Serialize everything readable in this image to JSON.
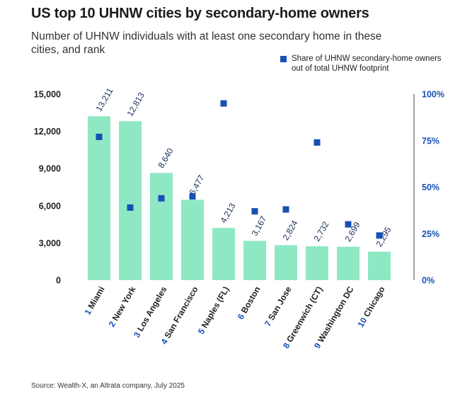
{
  "title": "US top 10 UHNW cities by secondary-home owners",
  "subtitle": "Number of UHNW individuals with at least one secondary home in these cities, and rank",
  "legend": {
    "label": "Share of UHNW secondary-home owners out of total UHNW footprint"
  },
  "source": "Source: Wealth-X, an Altrata company, July 2025",
  "colors": {
    "bar": "#8fe8c4",
    "marker": "#1650b4",
    "axis_right": "#1650b4",
    "rank": "#1650b4",
    "label": "#1b2f5a"
  },
  "chart_data": {
    "type": "bar",
    "categories": [
      "Miami",
      "New York",
      "Los Angeles",
      "San Francisco",
      "Naples (FL)",
      "Boston",
      "San Jose",
      "Greenwich (CT)",
      "Washington DC",
      "Chicago"
    ],
    "ranks": [
      "1",
      "2",
      "3",
      "4",
      "5",
      "6",
      "7",
      "8",
      "9",
      "10"
    ],
    "values": [
      13211,
      12813,
      8640,
      6477,
      4213,
      3167,
      2824,
      2732,
      2699,
      2295
    ],
    "value_labels": [
      "13,211",
      "12,813",
      "8,640",
      "6,477",
      "4,213",
      "3,167",
      "2,824",
      "2,732",
      "2,699",
      "2,295"
    ],
    "share": [
      77,
      39,
      44,
      45,
      95,
      37,
      38,
      74,
      30,
      24
    ],
    "ylim": [
      0,
      15000
    ],
    "yticks": [
      "0",
      "3,000",
      "6,000",
      "9,000",
      "12,000",
      "15,000"
    ],
    "ytick_values": [
      0,
      3000,
      6000,
      9000,
      12000,
      15000
    ],
    "y2lim": [
      0,
      100
    ],
    "y2ticks": [
      "0%",
      "25%",
      "50%",
      "75%",
      "100%"
    ],
    "y2tick_values": [
      0,
      25,
      50,
      75,
      100
    ],
    "legend_position": "top-right"
  }
}
